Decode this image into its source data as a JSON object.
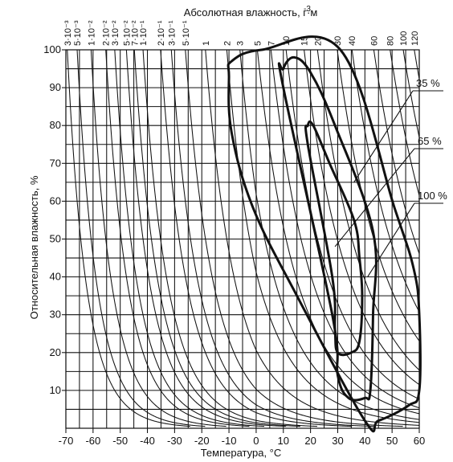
{
  "chart_data": {
    "type": "line",
    "xlabel": "Температура, °C",
    "ylabel": "Относительная влажность, %",
    "top_axis_label": "Абсолютная влажность, г·м",
    "top_axis_label_exponent": "-3",
    "xlim": [
      -70,
      60
    ],
    "ylim": [
      0,
      100
    ],
    "x_ticks": [
      -70,
      -60,
      -50,
      -40,
      -30,
      -20,
      -10,
      0,
      10,
      20,
      30,
      40,
      50,
      60
    ],
    "x_tick_labels": [
      "-70",
      "-60",
      "-50",
      "-40",
      "-30",
      "-20",
      "-10",
      "0",
      "10",
      "20",
      "30",
      "40",
      "50",
      "60"
    ],
    "y_ticks": [
      10,
      20,
      30,
      40,
      50,
      60,
      70,
      80,
      90,
      100
    ],
    "y_tick_labels": [
      "10",
      "20",
      "30",
      "40",
      "50",
      "60",
      "70",
      "80",
      "90",
      "100"
    ],
    "grid": true,
    "absolute_humidity_curves": [
      {
        "label": "3·10⁻³",
        "value": 0.003
      },
      {
        "label": "5·10⁻³",
        "value": 0.005
      },
      {
        "label": "1·10⁻²",
        "value": 0.01
      },
      {
        "label": "2·10⁻²",
        "value": 0.02
      },
      {
        "label": "3·10⁻²",
        "value": 0.03
      },
      {
        "label": "5·10⁻²",
        "value": 0.05
      },
      {
        "label": "7·10⁻²",
        "value": 0.07
      },
      {
        "label": "1·10⁻¹",
        "value": 0.1
      },
      {
        "label": "2·10⁻¹",
        "value": 0.2
      },
      {
        "label": "3·10⁻¹",
        "value": 0.3
      },
      {
        "label": "5·10⁻¹",
        "value": 0.5
      },
      {
        "label": "1",
        "value": 1
      },
      {
        "label": "2",
        "value": 2
      },
      {
        "label": "3",
        "value": 3
      },
      {
        "label": "5",
        "value": 5
      },
      {
        "label": "7",
        "value": 7
      },
      {
        "label": "10",
        "value": 10
      },
      {
        "label": "15",
        "value": 15
      },
      {
        "label": "20",
        "value": 20
      },
      {
        "label": "30",
        "value": 30
      },
      {
        "label": "40",
        "value": 40
      },
      {
        "label": "60",
        "value": 60
      },
      {
        "label": "80",
        "value": 80
      },
      {
        "label": "100",
        "value": 100
      },
      {
        "label": "120",
        "value": 120
      }
    ],
    "series": [
      {
        "name": "100 %",
        "x": [
          -9,
          -10,
          -9,
          2,
          31,
          51,
          58,
          60,
          60,
          56,
          45,
          40,
          15,
          -1,
          -9
        ],
        "y": [
          78,
          93,
          97,
          100,
          100,
          58,
          42,
          30,
          10,
          6,
          2,
          2,
          35,
          58,
          78
        ]
      },
      {
        "name": "65 %",
        "x": [
          10,
          10,
          14,
          20,
          29,
          43,
          43,
          42,
          40,
          34,
          30,
          28,
          10
        ],
        "y": [
          90,
          95,
          98,
          94,
          80,
          52,
          30,
          10,
          8,
          8,
          14,
          30,
          90
        ]
      },
      {
        "name": "35 %",
        "x": [
          19,
          19,
          21,
          27,
          36,
          38,
          39,
          38,
          35,
          30,
          29,
          28,
          19
        ],
        "y": [
          75,
          80,
          80,
          70,
          55,
          45,
          35,
          23,
          20,
          20,
          26,
          40,
          75
        ]
      }
    ],
    "legend_labels": [
      "35 %",
      "65 %",
      "100 %"
    ]
  }
}
